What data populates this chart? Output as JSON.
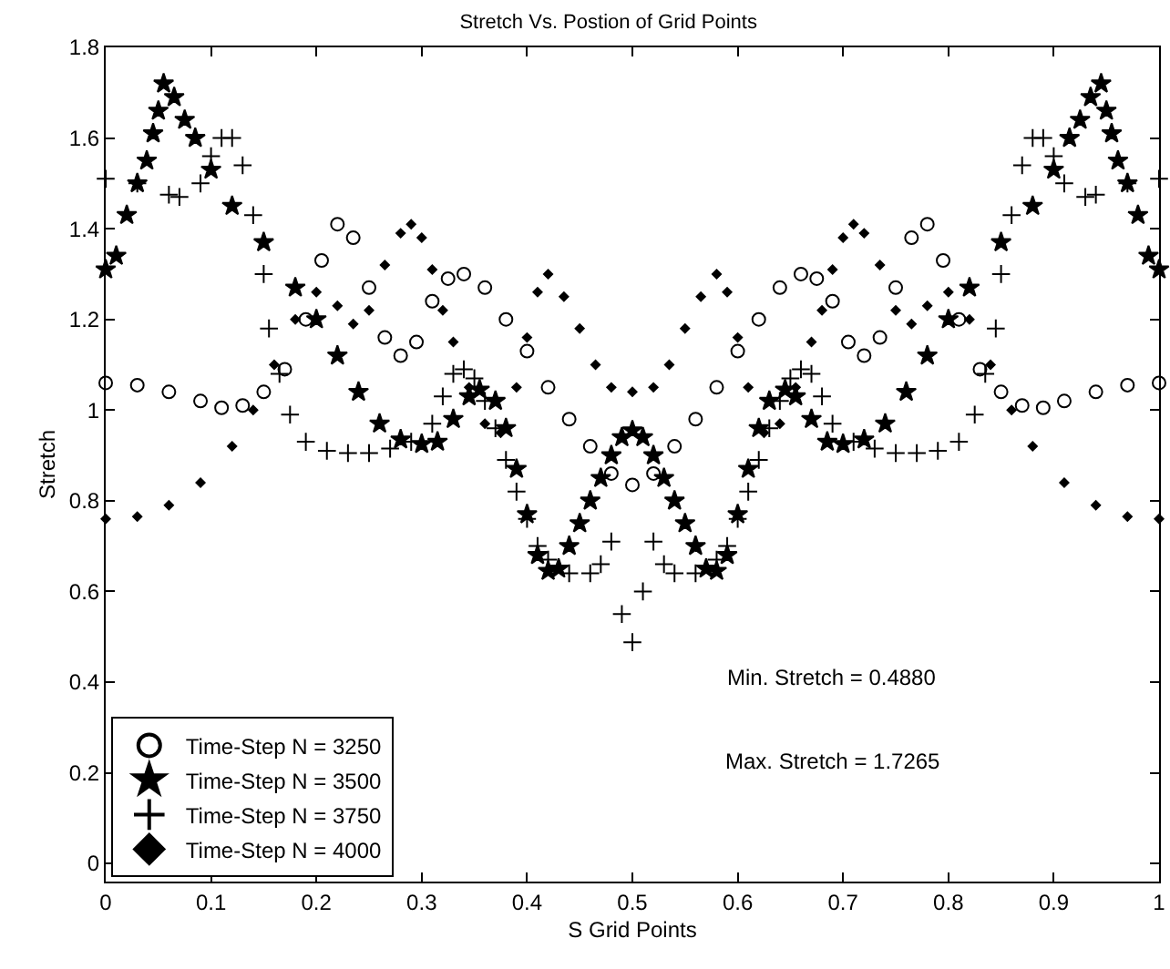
{
  "chart_data": {
    "type": "scatter",
    "title": "Stretch Vs. Postion of Grid Points",
    "xlabel": "S Grid Points",
    "ylabel": "Stretch",
    "xlim": [
      0,
      1
    ],
    "ylim": [
      -0.04,
      1.8
    ],
    "xticks": [
      0,
      0.1,
      0.2,
      0.3,
      0.4,
      0.5,
      0.6,
      0.7,
      0.8,
      0.9,
      1
    ],
    "yticks": [
      0,
      0.2,
      0.4,
      0.6,
      0.8,
      1,
      1.2,
      1.4,
      1.6,
      1.8
    ],
    "grid": false,
    "legend": "bottom left",
    "annotations": [
      "Min. Stretch = 0.4880",
      "Max. Stretch = 1.7265"
    ],
    "series": [
      {
        "name": "Time-Step N = 3250",
        "color": "#000000",
        "marker": "circle",
        "x": [
          0,
          0.03,
          0.06,
          0.09,
          0.11,
          0.13,
          0.15,
          0.17,
          0.19,
          0.205,
          0.22,
          0.235,
          0.25,
          0.265,
          0.28,
          0.295,
          0.31,
          0.325,
          0.34,
          0.36,
          0.38,
          0.4,
          0.42,
          0.44,
          0.46,
          0.48,
          0.5,
          0.52,
          0.54,
          0.56,
          0.58,
          0.6,
          0.62,
          0.64,
          0.66,
          0.675,
          0.69,
          0.705,
          0.72,
          0.735,
          0.75,
          0.765,
          0.78,
          0.795,
          0.81,
          0.83,
          0.85,
          0.87,
          0.89,
          0.91,
          0.94,
          0.97,
          1
        ],
        "values": [
          1.06,
          1.055,
          1.04,
          1.02,
          1.005,
          1.01,
          1.04,
          1.09,
          1.2,
          1.33,
          1.41,
          1.38,
          1.27,
          1.16,
          1.12,
          1.15,
          1.24,
          1.29,
          1.3,
          1.27,
          1.2,
          1.13,
          1.05,
          0.98,
          0.92,
          0.86,
          0.835,
          0.86,
          0.92,
          0.98,
          1.05,
          1.13,
          1.2,
          1.27,
          1.3,
          1.29,
          1.24,
          1.15,
          1.12,
          1.16,
          1.27,
          1.38,
          1.41,
          1.33,
          1.2,
          1.09,
          1.04,
          1.01,
          1.005,
          1.02,
          1.04,
          1.055,
          1.06
        ]
      },
      {
        "name": "Time-Step N = 3500",
        "color": "#000000",
        "marker": "star",
        "x": [
          0,
          0.01,
          0.02,
          0.03,
          0.039,
          0.045,
          0.05,
          0.055,
          0.065,
          0.075,
          0.085,
          0.1,
          0.12,
          0.15,
          0.18,
          0.2,
          0.22,
          0.24,
          0.26,
          0.28,
          0.3,
          0.315,
          0.33,
          0.345,
          0.355,
          0.37,
          0.38,
          0.39,
          0.4,
          0.41,
          0.42,
          0.43,
          0.44,
          0.45,
          0.46,
          0.47,
          0.48,
          0.49,
          0.5,
          0.51,
          0.52,
          0.53,
          0.54,
          0.55,
          0.56,
          0.57,
          0.58,
          0.59,
          0.6,
          0.61,
          0.62,
          0.63,
          0.645,
          0.655,
          0.67,
          0.685,
          0.7,
          0.72,
          0.74,
          0.76,
          0.78,
          0.8,
          0.82,
          0.85,
          0.88,
          0.9,
          0.915,
          0.925,
          0.935,
          0.945,
          0.95,
          0.955,
          0.961,
          0.97,
          0.98,
          0.99,
          1
        ],
        "values": [
          1.31,
          1.34,
          1.43,
          1.5,
          1.55,
          1.61,
          1.66,
          1.72,
          1.69,
          1.64,
          1.6,
          1.53,
          1.45,
          1.37,
          1.27,
          1.2,
          1.12,
          1.04,
          0.97,
          0.935,
          0.925,
          0.93,
          0.98,
          1.03,
          1.045,
          1.02,
          0.96,
          0.87,
          0.77,
          0.68,
          0.645,
          0.65,
          0.7,
          0.75,
          0.8,
          0.85,
          0.9,
          0.94,
          0.955,
          0.94,
          0.9,
          0.85,
          0.8,
          0.75,
          0.7,
          0.65,
          0.645,
          0.68,
          0.77,
          0.87,
          0.96,
          1.02,
          1.045,
          1.03,
          0.98,
          0.93,
          0.925,
          0.935,
          0.97,
          1.04,
          1.12,
          1.2,
          1.27,
          1.37,
          1.45,
          1.53,
          1.6,
          1.64,
          1.69,
          1.72,
          1.66,
          1.61,
          1.55,
          1.5,
          1.43,
          1.34,
          1.31
        ]
      },
      {
        "name": "Time-Step N = 3750",
        "color": "#000000",
        "marker": "cross",
        "x": [
          0,
          0.03,
          0.06,
          0.07,
          0.09,
          0.1,
          0.11,
          0.12,
          0.13,
          0.14,
          0.15,
          0.155,
          0.165,
          0.175,
          0.19,
          0.21,
          0.23,
          0.25,
          0.27,
          0.29,
          0.31,
          0.32,
          0.33,
          0.34,
          0.35,
          0.36,
          0.37,
          0.38,
          0.39,
          0.4,
          0.41,
          0.42,
          0.44,
          0.46,
          0.47,
          0.48,
          0.49,
          0.5,
          0.51,
          0.52,
          0.53,
          0.54,
          0.56,
          0.58,
          0.59,
          0.6,
          0.61,
          0.62,
          0.63,
          0.64,
          0.65,
          0.66,
          0.67,
          0.68,
          0.69,
          0.71,
          0.73,
          0.75,
          0.77,
          0.79,
          0.81,
          0.825,
          0.835,
          0.845,
          0.85,
          0.86,
          0.87,
          0.88,
          0.89,
          0.9,
          0.91,
          0.93,
          0.94,
          0.97,
          1
        ],
        "values": [
          1.51,
          1.5,
          1.475,
          1.47,
          1.5,
          1.56,
          1.6,
          1.6,
          1.54,
          1.43,
          1.3,
          1.18,
          1.08,
          0.99,
          0.93,
          0.91,
          0.905,
          0.905,
          0.915,
          0.93,
          0.97,
          1.03,
          1.08,
          1.09,
          1.07,
          1.02,
          0.96,
          0.89,
          0.82,
          0.76,
          0.7,
          0.67,
          0.64,
          0.64,
          0.66,
          0.71,
          0.55,
          0.488,
          0.6,
          0.71,
          0.66,
          0.64,
          0.64,
          0.67,
          0.7,
          0.76,
          0.82,
          0.89,
          0.96,
          1.02,
          1.07,
          1.09,
          1.08,
          1.03,
          0.97,
          0.93,
          0.915,
          0.905,
          0.905,
          0.91,
          0.93,
          0.99,
          1.08,
          1.18,
          1.3,
          1.43,
          1.54,
          1.6,
          1.6,
          1.56,
          1.5,
          1.47,
          1.475,
          1.5,
          1.51
        ]
      },
      {
        "name": "Time-Step N = 4000",
        "color": "#000000",
        "marker": "diamond",
        "x": [
          0,
          0.03,
          0.06,
          0.09,
          0.12,
          0.14,
          0.16,
          0.18,
          0.2,
          0.22,
          0.235,
          0.25,
          0.265,
          0.28,
          0.29,
          0.3,
          0.31,
          0.32,
          0.33,
          0.345,
          0.36,
          0.375,
          0.39,
          0.4,
          0.41,
          0.42,
          0.435,
          0.45,
          0.465,
          0.48,
          0.5,
          0.52,
          0.535,
          0.55,
          0.565,
          0.58,
          0.59,
          0.6,
          0.61,
          0.625,
          0.64,
          0.655,
          0.67,
          0.68,
          0.69,
          0.7,
          0.71,
          0.72,
          0.735,
          0.75,
          0.765,
          0.78,
          0.8,
          0.82,
          0.84,
          0.86,
          0.88,
          0.91,
          0.94,
          0.97,
          1
        ],
        "values": [
          0.76,
          0.765,
          0.79,
          0.84,
          0.92,
          1.0,
          1.1,
          1.2,
          1.26,
          1.23,
          1.19,
          1.22,
          1.32,
          1.39,
          1.41,
          1.38,
          1.31,
          1.22,
          1.15,
          1.05,
          0.97,
          0.95,
          1.05,
          1.16,
          1.26,
          1.3,
          1.25,
          1.18,
          1.1,
          1.05,
          1.04,
          1.05,
          1.1,
          1.18,
          1.25,
          1.3,
          1.26,
          1.16,
          1.05,
          0.95,
          0.97,
          1.05,
          1.15,
          1.22,
          1.31,
          1.38,
          1.41,
          1.39,
          1.32,
          1.22,
          1.19,
          1.23,
          1.26,
          1.2,
          1.1,
          1.0,
          0.92,
          0.84,
          0.79,
          0.765,
          0.76
        ]
      }
    ]
  }
}
